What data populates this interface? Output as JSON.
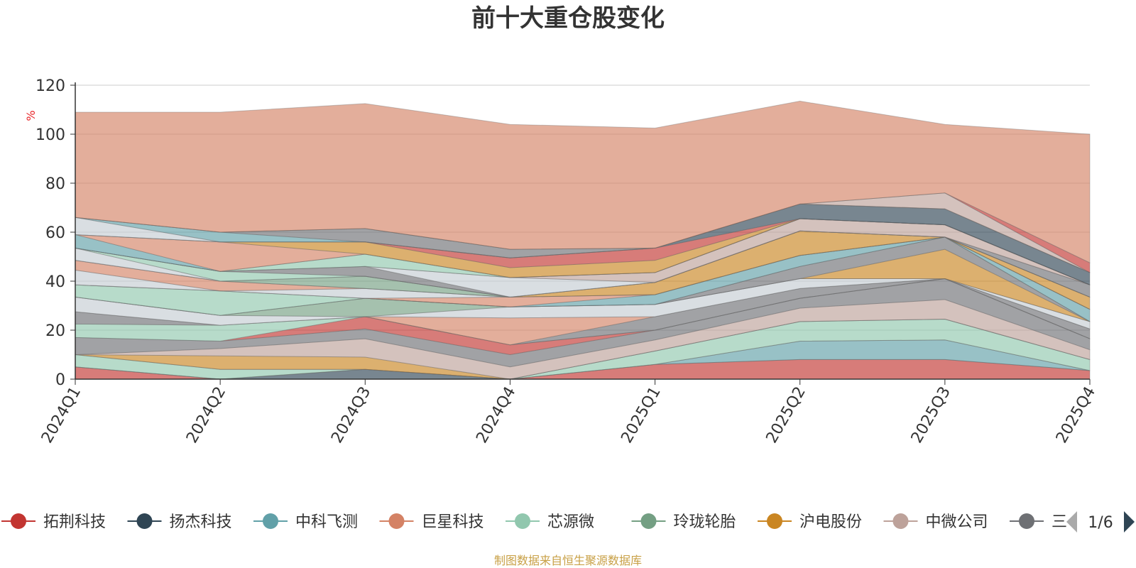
{
  "title": "前十大重仓股变化",
  "source_note": "制图数据来自恒生聚源数据库",
  "colors": {
    "text": "#333333",
    "axis": "#333333",
    "grid": "#cccccc",
    "unit": "#e8262a",
    "pager_active": "#2f4554",
    "pager_inactive": "#aaaaaa",
    "source": "#c8a046"
  },
  "legend": {
    "items": [
      {
        "label": "拓荆科技",
        "color": "#c23531"
      },
      {
        "label": "扬杰科技",
        "color": "#2f4554"
      },
      {
        "label": "中科飞测",
        "color": "#61a0a8"
      },
      {
        "label": "巨星科技",
        "color": "#d48265"
      },
      {
        "label": "芯源微",
        "color": "#91c7ae"
      },
      {
        "label": "玲珑轮胎",
        "color": "#749f83"
      },
      {
        "label": "沪电股份",
        "color": "#ca8622"
      },
      {
        "label": "中微公司",
        "color": "#bda29a"
      },
      {
        "label": "三·",
        "color": "#6e7074"
      }
    ],
    "page_text": "1/6",
    "prev_icon": "triangle-left-icon",
    "next_icon": "triangle-right-icon"
  },
  "chart_data": {
    "type": "area",
    "stacked": true,
    "title": "前十大重仓股变化",
    "ylabel": "%",
    "xlabel": "",
    "ylim": [
      0,
      120
    ],
    "yticks": [
      0,
      20,
      40,
      60,
      80,
      100,
      120
    ],
    "grid": true,
    "legend_position": "bottom",
    "categories": [
      "2024Q1",
      "2024Q2",
      "2024Q3",
      "2024Q4",
      "2025Q1",
      "2025Q2",
      "2025Q3",
      "2025Q4"
    ],
    "series": [
      {
        "name": "拓荆科技",
        "color": "#c23531",
        "values": [
          5,
          0,
          0,
          0,
          6,
          8,
          8,
          3.5
        ]
      },
      {
        "name": "扬杰科技",
        "color": "#2f4554",
        "values": [
          0,
          0,
          4,
          0,
          0,
          0,
          0,
          0
        ]
      },
      {
        "name": "中科飞测",
        "color": "#61a0a8",
        "values": [
          0,
          0,
          0,
          0,
          0,
          7.5,
          8,
          0
        ]
      },
      {
        "name": "巨星科技",
        "color": "#d48265",
        "values": [
          0,
          0,
          0,
          0,
          0,
          0,
          0,
          0
        ]
      },
      {
        "name": "芯源微",
        "color": "#91c7ae",
        "values": [
          5,
          4,
          0,
          0,
          5.5,
          8,
          8.5,
          4.5
        ]
      },
      {
        "name": "玲珑轮胎",
        "color": "#749f83",
        "values": [
          0,
          0,
          0,
          0,
          0,
          0,
          0,
          0
        ]
      },
      {
        "name": "沪电股份",
        "color": "#ca8622",
        "values": [
          0,
          5.5,
          5,
          0,
          0,
          0,
          0,
          0
        ]
      },
      {
        "name": "中微公司",
        "color": "#bda29a",
        "values": [
          0,
          3,
          7.5,
          5,
          4.5,
          5.5,
          8,
          4
        ]
      },
      {
        "name": "三·",
        "color": "#6e7074",
        "values": [
          7,
          3,
          4,
          5,
          4,
          4,
          8.5,
          4.5
        ]
      },
      {
        "name": "",
        "color": "#c23531",
        "values": [
          0,
          0,
          5,
          4,
          0,
          0,
          0,
          0
        ]
      },
      {
        "name": "",
        "color": "#91c7ae",
        "values": [
          5.5,
          6.5,
          0,
          0,
          0,
          0,
          0,
          0
        ]
      },
      {
        "name": "",
        "color": "#6e7074",
        "values": [
          5,
          0,
          0,
          0,
          5.5,
          4,
          0,
          4
        ]
      },
      {
        "name": "",
        "color": "#d48265",
        "values": [
          0,
          0,
          0,
          11,
          0,
          0,
          0,
          0
        ]
      },
      {
        "name": "",
        "color": "#c4ccd3",
        "values": [
          6,
          4,
          0,
          4.5,
          5,
          4,
          0,
          3
        ]
      },
      {
        "name": "",
        "color": "#749f83",
        "values": [
          0,
          0,
          7.5,
          0,
          0,
          0,
          0,
          0
        ]
      },
      {
        "name": "",
        "color": "#ca8622",
        "values": [
          0,
          0,
          0,
          0,
          0,
          0,
          12,
          0
        ]
      },
      {
        "name": "",
        "color": "#6e7074",
        "values": [
          0,
          0,
          0,
          0,
          0,
          5,
          5,
          0
        ]
      },
      {
        "name": "",
        "color": "#91c7ae",
        "values": [
          5,
          10,
          0,
          0,
          0,
          0,
          0,
          0
        ]
      },
      {
        "name": "",
        "color": "#61a0a8",
        "values": [
          0,
          0,
          0,
          0,
          4,
          4.5,
          0,
          5
        ]
      },
      {
        "name": "",
        "color": "#d48265",
        "values": [
          0,
          0,
          0,
          4,
          0,
          0,
          0,
          0
        ]
      },
      {
        "name": "",
        "color": "#c4ccd3",
        "values": [
          6,
          0,
          4,
          0,
          0,
          0,
          0,
          0
        ]
      },
      {
        "name": "",
        "color": "#d48265",
        "values": [
          4,
          4,
          0,
          0,
          0,
          0,
          0,
          0
        ]
      },
      {
        "name": "",
        "color": "#ca8622",
        "values": [
          0,
          0,
          0,
          0,
          5,
          10,
          0,
          5
        ]
      },
      {
        "name": "",
        "color": "#749f83",
        "values": [
          0,
          0,
          5,
          0,
          0,
          0,
          0,
          0
        ]
      },
      {
        "name": "",
        "color": "#c4ccd3",
        "values": [
          5,
          0,
          0,
          0,
          0,
          0,
          0,
          0
        ]
      },
      {
        "name": "",
        "color": "#91c7ae",
        "values": [
          0,
          4,
          0,
          0,
          0,
          0,
          0,
          0
        ]
      },
      {
        "name": "",
        "color": "#6e7074",
        "values": [
          0,
          0,
          4,
          0,
          0,
          0,
          0,
          5
        ]
      },
      {
        "name": "",
        "color": "#c4ccd3",
        "values": [
          0,
          0,
          0,
          8,
          0,
          0,
          0,
          0
        ]
      },
      {
        "name": "",
        "color": "#bda29a",
        "values": [
          0,
          0,
          0,
          0,
          4,
          5,
          5,
          0
        ]
      },
      {
        "name": "",
        "color": "#91c7ae",
        "values": [
          0,
          0,
          5,
          0,
          0,
          0,
          0,
          0
        ]
      },
      {
        "name": "",
        "color": "#61a0a8",
        "values": [
          5.5,
          0,
          0,
          0,
          0,
          0,
          0,
          0
        ]
      },
      {
        "name": "",
        "color": "#d48265",
        "values": [
          0,
          12,
          0,
          0,
          0,
          0,
          0,
          0
        ]
      },
      {
        "name": "",
        "color": "#ca8622",
        "values": [
          0,
          0,
          5,
          4,
          5,
          0,
          0,
          0
        ]
      },
      {
        "name": "",
        "color": "#c23531",
        "values": [
          0,
          0,
          0,
          4,
          5,
          0,
          0,
          0
        ]
      },
      {
        "name": "",
        "color": "#2f4554",
        "values": [
          0,
          0,
          0,
          0,
          0,
          6,
          6.5,
          5
        ]
      },
      {
        "name": "",
        "color": "#c4ccd3",
        "values": [
          7,
          0,
          0,
          0,
          0,
          0,
          0,
          0
        ]
      },
      {
        "name": "",
        "color": "#61a0a8",
        "values": [
          0,
          4,
          0,
          0,
          0,
          0,
          0,
          0
        ]
      },
      {
        "name": "",
        "color": "#6e7074",
        "values": [
          0,
          0,
          5.5,
          3.5,
          0,
          0,
          0,
          0
        ]
      },
      {
        "name": "",
        "color": "#bda29a",
        "values": [
          0,
          0,
          0,
          0,
          0,
          0,
          6.5,
          0
        ]
      },
      {
        "name": "",
        "color": "#c23531",
        "values": [
          0,
          0,
          0,
          0,
          0,
          0,
          0,
          4
        ]
      },
      {
        "name": "",
        "color": "#d48265",
        "values": [
          43,
          49,
          51,
          51,
          49,
          42,
          28,
          52.5
        ]
      }
    ]
  }
}
